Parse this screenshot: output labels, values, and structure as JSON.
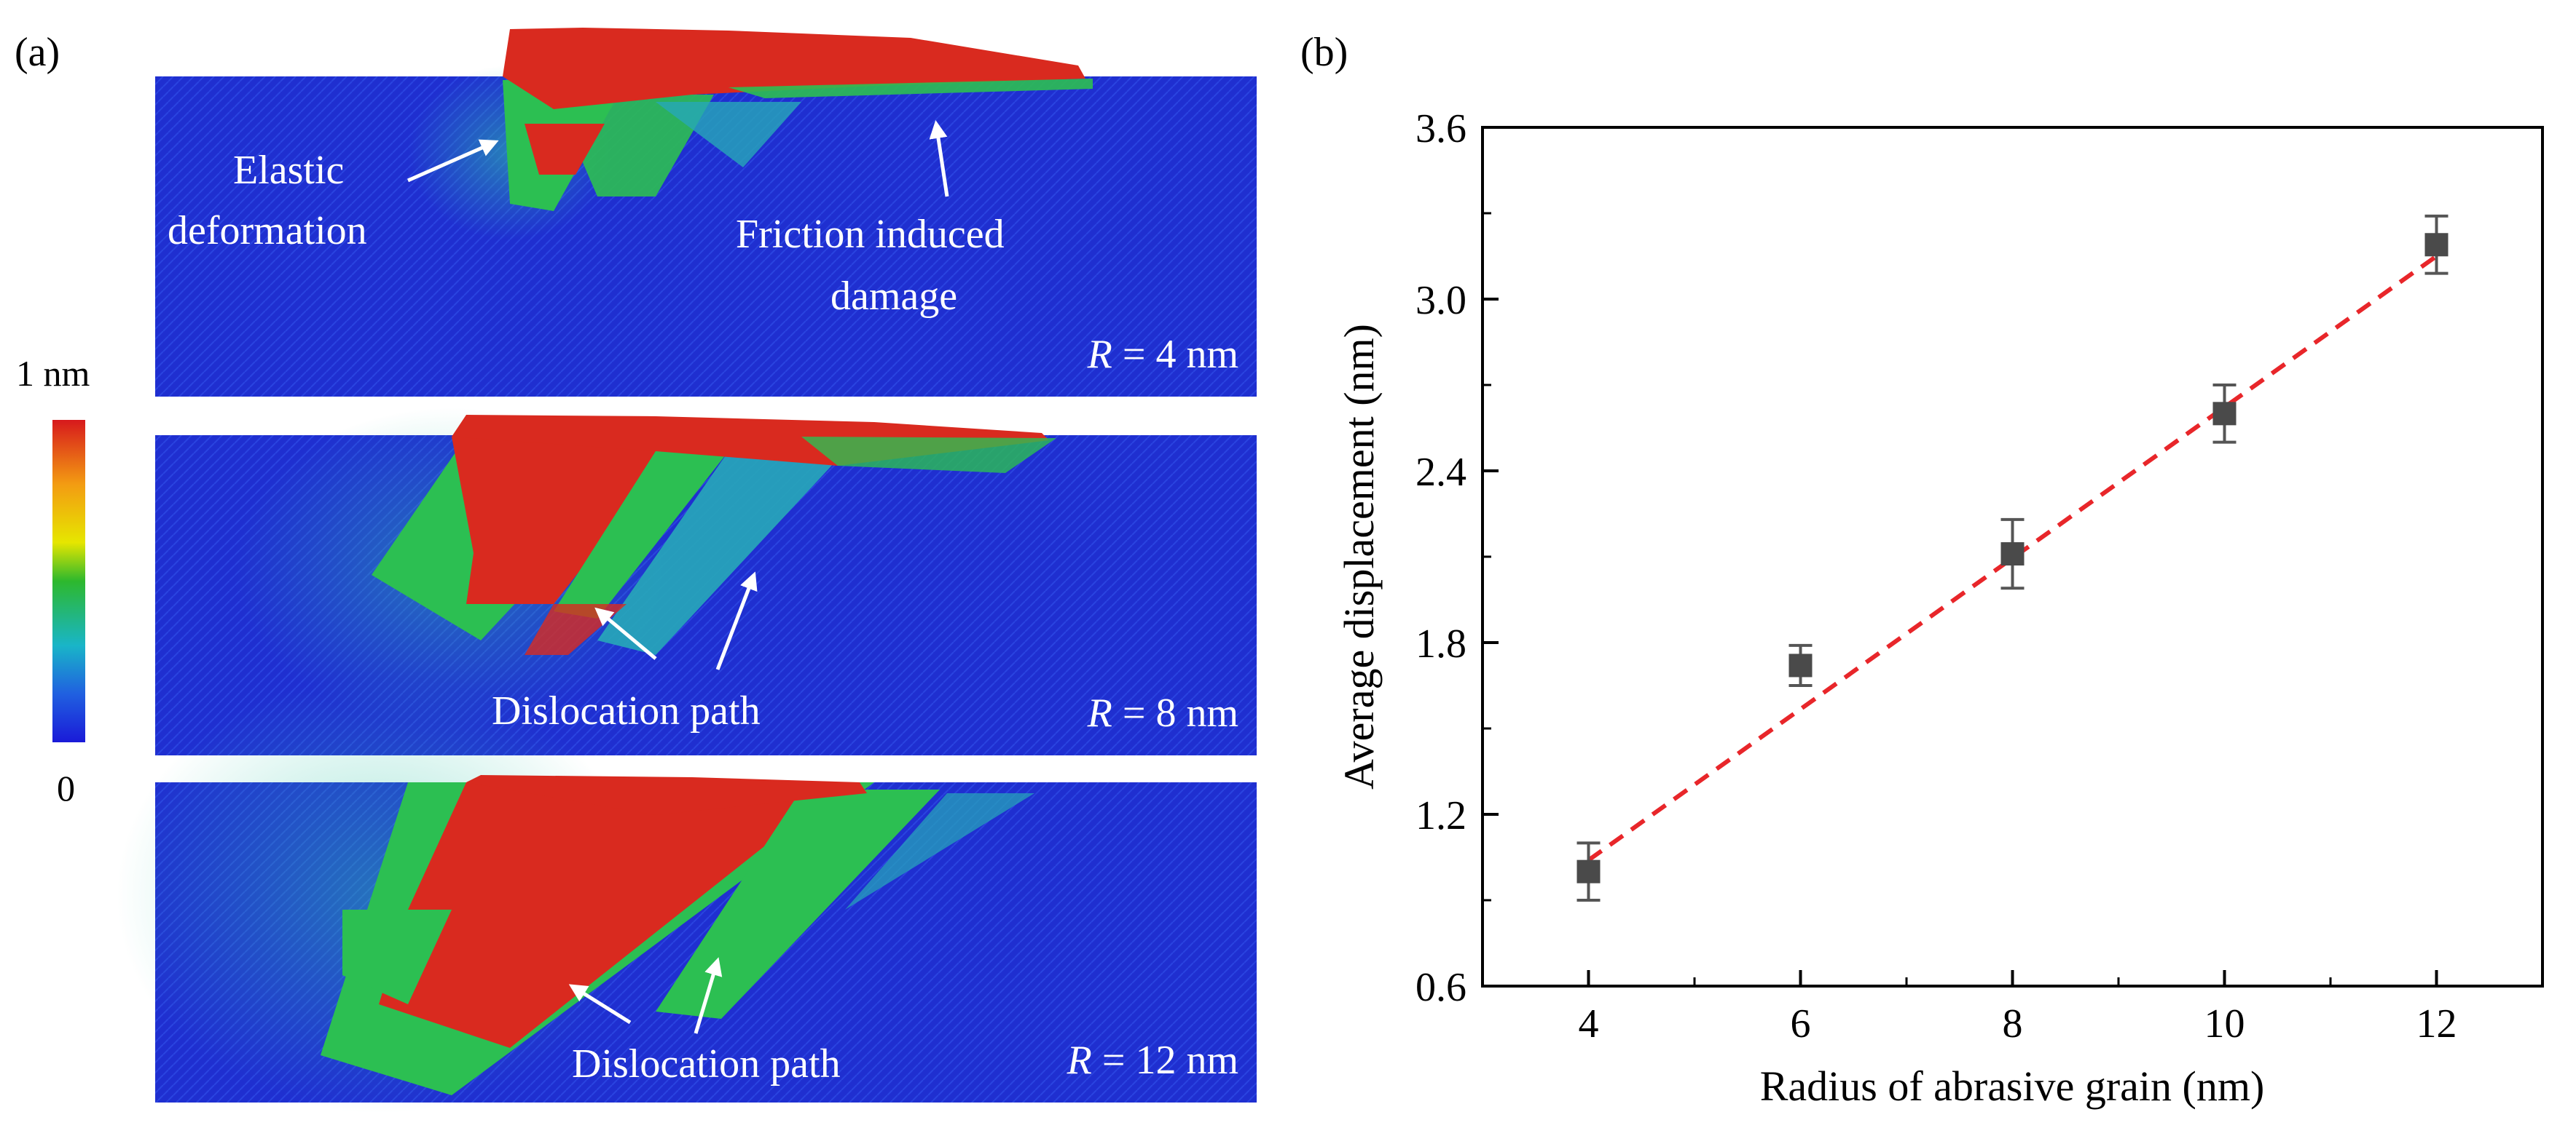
{
  "panel_a": {
    "label": "(a)",
    "colorbar": {
      "max_label": "1 nm",
      "min_label": "0"
    },
    "sims": [
      {
        "r_italic": "R",
        "r_text": " = 4 nm",
        "annotations": {
          "elastic_1": "Elastic",
          "elastic_2": "deformation",
          "friction_1": "Friction induced",
          "friction_2": "damage"
        }
      },
      {
        "r_italic": "R",
        "r_text": " = 8 nm",
        "annotations": {
          "dislocation": "Dislocation path"
        }
      },
      {
        "r_italic": "R",
        "r_text": " = 12 nm",
        "annotations": {
          "dislocation": "Dislocation path"
        }
      }
    ]
  },
  "panel_b": {
    "label": "(b)"
  },
  "chart_data": {
    "type": "scatter",
    "title": "",
    "xlabel": "Radius of abrasive grain (nm)",
    "ylabel": "Average displacement (nm)",
    "xlim": [
      3,
      13
    ],
    "ylim": [
      0.6,
      3.6
    ],
    "xticks": [
      4,
      6,
      8,
      10,
      12
    ],
    "yticks": [
      0.6,
      1.2,
      1.8,
      2.4,
      3.0,
      3.6
    ],
    "yticklabels": [
      "0.6",
      "1.2",
      "1.8",
      "2.4",
      "3.0",
      "3.6"
    ],
    "points": [
      {
        "x": 4,
        "y": 1.0,
        "err": 0.1
      },
      {
        "x": 6,
        "y": 1.72,
        "err": 0.07
      },
      {
        "x": 8,
        "y": 2.11,
        "err": 0.12
      },
      {
        "x": 10,
        "y": 2.6,
        "err": 0.1
      },
      {
        "x": 12,
        "y": 3.19,
        "err": 0.1
      }
    ],
    "fit_line": {
      "x": [
        4,
        12
      ],
      "y": [
        1.04,
        3.15
      ],
      "style": "dashed",
      "color": "#e8262a"
    },
    "marker_color": "#4a4a4a",
    "grid": false
  }
}
